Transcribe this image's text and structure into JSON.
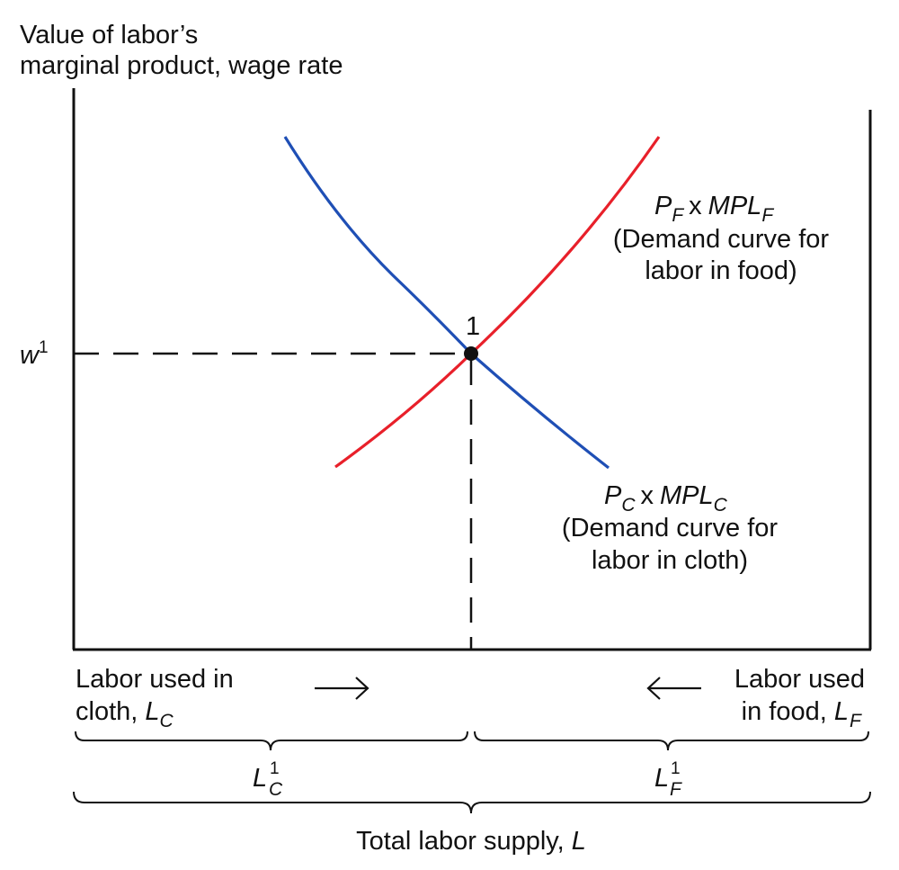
{
  "y_axis_label": {
    "line1": "Value of labor’s",
    "line2": "marginal product, wage rate"
  },
  "wage": {
    "symbol": "w",
    "sup": "1"
  },
  "equilibrium": {
    "label": "1"
  },
  "food_curve": {
    "color": "#e8202a",
    "formula": {
      "p": "P",
      "p_sub": "F",
      "times": "x",
      "mpl": "MPL",
      "mpl_sub": "F"
    },
    "desc_line1": "(Demand curve for",
    "desc_line2": "labor in food)"
  },
  "cloth_curve": {
    "color": "#1f4fb5",
    "formula": {
      "p": "P",
      "p_sub": "C",
      "times": "x",
      "mpl": "MPL",
      "mpl_sub": "C"
    },
    "desc_line1": "(Demand curve for",
    "desc_line2": "labor in cloth)"
  },
  "cloth_axis": {
    "line1": "Labor used in",
    "line2_prefix": "cloth, ",
    "symbol": "L",
    "sub": "C",
    "arrow": "right-arrow-icon"
  },
  "food_axis": {
    "line1": "Labor used",
    "line2_prefix": "in food, ",
    "symbol": "L",
    "sub": "F",
    "arrow": "left-arrow-icon"
  },
  "lc1": {
    "symbol": "L",
    "sub": "C",
    "sup": "1"
  },
  "lf1": {
    "symbol": "L",
    "sub": "F",
    "sup": "1"
  },
  "total": {
    "text": "Total labor supply, ",
    "symbol": "L"
  }
}
